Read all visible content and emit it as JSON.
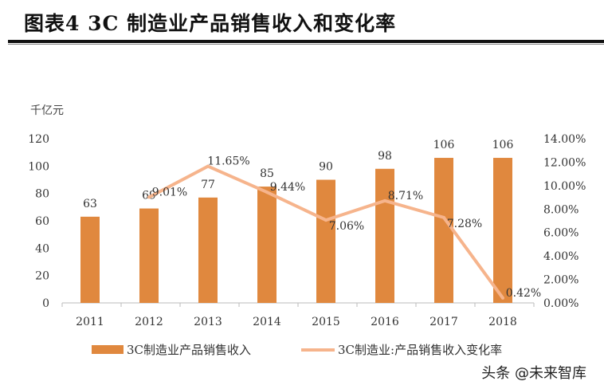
{
  "title": "图表4 3C 制造业产品销售收入和变化率",
  "watermark": "头条 @未来智库",
  "chart_data": {
    "type": "bar+line",
    "title": "图表4 3C 制造业产品销售收入和变化率",
    "ylabel": "千亿元",
    "categories": [
      "2011",
      "2012",
      "2013",
      "2014",
      "2015",
      "2016",
      "2017",
      "2018"
    ],
    "ylim": [
      0,
      120
    ],
    "yticks": [
      "0",
      "20",
      "40",
      "60",
      "80",
      "100",
      "120"
    ],
    "y2lim": [
      0,
      14
    ],
    "y2ticks": [
      "0.00%",
      "2.00%",
      "4.00%",
      "6.00%",
      "8.00%",
      "10.00%",
      "12.00%",
      "14.00%"
    ],
    "grid": false,
    "legend": "bottom",
    "series": [
      {
        "name": "3C制造业产品销售收入",
        "type": "bar",
        "axis": "left",
        "color": "#E0883E",
        "values": [
          63,
          69,
          77,
          85,
          90,
          98,
          106,
          106
        ],
        "labels": [
          "63",
          "69",
          "77",
          "85",
          "90",
          "98",
          "106",
          "106"
        ]
      },
      {
        "name": "3C制造业:产品销售收入变化率",
        "type": "line",
        "axis": "right",
        "color": "#F6B48C",
        "values": [
          null,
          9.01,
          11.65,
          9.44,
          7.06,
          8.71,
          7.28,
          0.42
        ],
        "labels": [
          "",
          "9.01%",
          "11.65%",
          "9.44%",
          "7.06%",
          "8.71%",
          "7.28%",
          "0.42%"
        ]
      }
    ]
  }
}
